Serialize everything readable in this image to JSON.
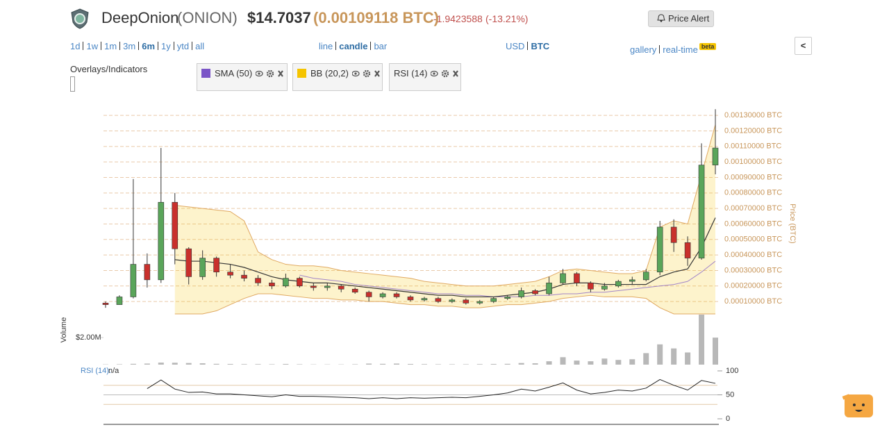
{
  "header": {
    "name": "DeepOnion",
    "symbol": "(ONION)",
    "price_usd": "$14.7037",
    "price_btc": "(0.00109118 BTC)",
    "change": "-1.9423588",
    "change_pct": "(-13.21%)",
    "alert": "Price Alert"
  },
  "controls": {
    "ranges": {
      "items": [
        "1d",
        "1w",
        "1m",
        "3m",
        "6m",
        "1y",
        "ytd",
        "all"
      ],
      "active": 4
    },
    "chart_types": {
      "items": [
        "line",
        "candle",
        "bar"
      ],
      "active": 1
    },
    "currencies": {
      "items": [
        "USD",
        "BTC"
      ],
      "active": 1
    },
    "views": {
      "items": [
        "gallery",
        "real-time"
      ],
      "badge": "beta"
    },
    "collapse": "<",
    "overlays_label": "Overlays/Indicators"
  },
  "chart_data": {
    "type": "candlestick",
    "categories": [
      null,
      null,
      null,
      null,
      null,
      null,
      null,
      null,
      null,
      null,
      null,
      null,
      null,
      null,
      null,
      null,
      null,
      null,
      null,
      null,
      null,
      null,
      null,
      null,
      null,
      null,
      null,
      null,
      null,
      null,
      null,
      null,
      null,
      null,
      null,
      null,
      null,
      null,
      null,
      null,
      null,
      null,
      null,
      null,
      null
    ],
    "open": [
      9e-05,
      8e-05,
      0.00013,
      0.00034,
      0.00024,
      0.00074,
      0.00044,
      0.00026,
      0.00038,
      0.00029,
      0.00027,
      0.00025,
      0.00022,
      0.0002,
      0.00025,
      0.0002,
      0.00019,
      0.0002,
      0.00018,
      0.00016,
      0.00013,
      0.00015,
      0.00013,
      0.00011,
      0.00012,
      0.0001,
      0.00011,
      9e-05,
      0.0001,
      0.00012,
      0.00013,
      0.00017,
      0.00015,
      0.00022,
      0.00028,
      0.00022,
      0.00018,
      0.0002,
      0.00023,
      0.00024,
      0.00029,
      0.00058,
      0.00048,
      0.00038,
      0.00098
    ],
    "high": [
      0.0001,
      0.00014,
      0.00089,
      0.00041,
      0.00109,
      0.0008,
      0.00045,
      0.00043,
      0.00039,
      0.00034,
      0.0003,
      0.00027,
      0.00024,
      0.00028,
      0.00026,
      0.00022,
      0.00022,
      0.00021,
      0.00019,
      0.00017,
      0.00016,
      0.00016,
      0.00014,
      0.00013,
      0.00013,
      0.00012,
      0.00012,
      0.00011,
      0.00013,
      0.00014,
      0.00019,
      0.00018,
      0.00026,
      0.00031,
      0.00029,
      0.00023,
      0.00022,
      0.00024,
      0.00026,
      0.00031,
      0.00062,
      0.00063,
      0.00052,
      0.00112,
      0.00134
    ],
    "low": [
      6e-05,
      8e-05,
      0.00012,
      0.00019,
      0.00022,
      0.00034,
      0.00021,
      0.00024,
      0.00026,
      0.00025,
      0.00023,
      0.0002,
      0.00018,
      0.00019,
      0.00019,
      0.00017,
      0.00017,
      0.00016,
      0.00015,
      0.0001,
      0.00012,
      0.00012,
      0.0001,
      0.0001,
      9e-05,
      9e-05,
      8e-05,
      8e-05,
      9e-05,
      0.00011,
      0.00012,
      0.00014,
      0.00014,
      0.00021,
      0.0002,
      0.00016,
      0.00017,
      0.00019,
      0.00021,
      0.00023,
      0.00027,
      0.00042,
      0.00033,
      0.00037,
      0.00092
    ],
    "close": [
      8e-05,
      0.00013,
      0.00034,
      0.00024,
      0.00074,
      0.00044,
      0.00026,
      0.00038,
      0.00029,
      0.00027,
      0.00025,
      0.00022,
      0.0002,
      0.00025,
      0.0002,
      0.00019,
      0.0002,
      0.00018,
      0.00016,
      0.00013,
      0.00015,
      0.00013,
      0.00011,
      0.00012,
      0.0001,
      0.00011,
      9e-05,
      0.0001,
      0.00012,
      0.00013,
      0.00017,
      0.00015,
      0.00022,
      0.00028,
      0.00022,
      0.00018,
      0.0002,
      0.00023,
      0.00024,
      0.00029,
      0.00058,
      0.00048,
      0.00038,
      0.00098,
      0.00109
    ],
    "up_color": "#5aa55a",
    "down_color": "#c9302c",
    "ylim": [
      2e-05,
      0.00135
    ],
    "yticks": [
      {
        "value": 0.0001,
        "label": "0.00010000 BTC"
      },
      {
        "value": 0.0002,
        "label": "0.00020000 BTC"
      },
      {
        "value": 0.0003,
        "label": "0.00030000 BTC"
      },
      {
        "value": 0.0004,
        "label": "0.00040000 BTC"
      },
      {
        "value": 0.0005,
        "label": "0.00050000 BTC"
      },
      {
        "value": 0.0006,
        "label": "0.00060000 BTC"
      },
      {
        "value": 0.0007,
        "label": "0.00070000 BTC"
      },
      {
        "value": 0.0008,
        "label": "0.00080000 BTC"
      },
      {
        "value": 0.0009,
        "label": "0.00090000 BTC"
      },
      {
        "value": 0.001,
        "label": "0.00100000 BTC"
      },
      {
        "value": 0.0011,
        "label": "0.00110000 BTC"
      },
      {
        "value": 0.0012,
        "label": "0.00120000 BTC"
      },
      {
        "value": 0.0013,
        "label": "0.00130000 BTC"
      }
    ],
    "y_label": "Price (BTC)",
    "grid": true,
    "sma": {
      "name": "SMA (50)",
      "color": "#7b55c7",
      "values": [
        null,
        null,
        null,
        null,
        null,
        null,
        null,
        null,
        null,
        null,
        null,
        null,
        null,
        null,
        0.00027,
        0.00025,
        0.00024,
        0.00023,
        0.00021,
        0.0002,
        0.00019,
        0.00018,
        0.00017,
        0.00016,
        0.00015,
        0.00015,
        0.00014,
        0.00014,
        0.00013,
        0.00013,
        0.00013,
        0.00014,
        0.00014,
        0.00015,
        0.00015,
        0.00016,
        0.00016,
        0.00017,
        0.00018,
        0.00019,
        0.0002,
        0.00021,
        0.00023,
        0.00029,
        0.00036
      ]
    },
    "bb": {
      "name": "BB (20,2)",
      "color": "#f5c400",
      "upper": [
        null,
        null,
        null,
        null,
        null,
        0.00072,
        0.00071,
        0.0007,
        0.00069,
        0.00068,
        0.00062,
        0.00042,
        0.00037,
        0.00034,
        0.00033,
        0.00033,
        0.00032,
        0.0003,
        0.00029,
        0.00028,
        0.00027,
        0.00026,
        0.00025,
        0.00023,
        0.00022,
        0.00021,
        0.0002,
        0.0002,
        0.0002,
        0.00021,
        0.00022,
        0.00023,
        0.00026,
        0.0003,
        0.00031,
        0.0003,
        0.00029,
        0.00028,
        0.00028,
        0.0003,
        0.00058,
        0.00062,
        0.0006,
        0.00092,
        0.00124
      ],
      "middle": [
        null,
        null,
        null,
        null,
        null,
        0.00037,
        0.00036,
        0.00036,
        0.00035,
        0.00034,
        0.00032,
        0.00029,
        0.00026,
        0.00024,
        0.00023,
        0.00022,
        0.00022,
        0.00021,
        0.0002,
        0.00019,
        0.00018,
        0.00017,
        0.00016,
        0.00015,
        0.00014,
        0.00014,
        0.00013,
        0.00013,
        0.00013,
        0.00014,
        0.00015,
        0.00016,
        0.00018,
        0.00021,
        0.00022,
        0.00022,
        0.00021,
        0.00021,
        0.00021,
        0.00021,
        0.00026,
        0.00029,
        0.00031,
        0.00045,
        0.00064
      ],
      "lower": [
        null,
        null,
        null,
        null,
        null,
        2e-05,
        2e-05,
        2e-05,
        4e-05,
        8e-05,
        0.00012,
        0.00015,
        0.00015,
        0.00014,
        0.00013,
        0.00012,
        0.00012,
        0.00011,
        0.00011,
        0.0001,
        0.0001,
        9e-05,
        8e-05,
        8e-05,
        7e-05,
        7e-05,
        6e-05,
        6e-05,
        7e-05,
        8e-05,
        8e-05,
        9e-05,
        0.0001,
        0.00012,
        0.00013,
        0.00014,
        0.00013,
        0.00013,
        0.00013,
        0.00012,
        6e-05,
        2e-05,
        2e-05,
        2e-05,
        2e-05
      ]
    },
    "volume": {
      "label": "Volume",
      "color": "#b8b8b8",
      "values": [
        20000,
        30000,
        60000,
        80000,
        150000,
        140000,
        120000,
        100000,
        60000,
        50000,
        40000,
        40000,
        30000,
        50000,
        30000,
        20000,
        20000,
        20000,
        30000,
        80000,
        60000,
        80000,
        50000,
        40000,
        30000,
        30000,
        30000,
        40000,
        50000,
        60000,
        120000,
        100000,
        250000,
        550000,
        300000,
        250000,
        450000,
        350000,
        400000,
        850000,
        1500000,
        1200000,
        900000,
        3700000,
        2000000
      ],
      "ylim": [
        0,
        3700000
      ],
      "yticks": [
        {
          "value": 2000000,
          "label": "$2.00M"
        }
      ]
    },
    "rsi": {
      "name": "RSI (14)",
      "label": "RSI (14):",
      "value_text": "n/a",
      "color": "#222",
      "values": [
        null,
        null,
        null,
        63,
        81,
        62,
        55,
        56,
        52,
        52,
        50,
        48,
        46,
        50,
        47,
        47,
        46,
        45,
        44,
        42,
        44,
        42,
        44,
        43,
        44,
        45,
        44,
        47,
        50,
        54,
        62,
        58,
        66,
        75,
        60,
        52,
        55,
        60,
        58,
        64,
        82,
        70,
        60,
        80,
        74
      ],
      "ylim": [
        0,
        100
      ],
      "yticks": [
        0,
        50,
        100
      ],
      "bands": [
        30,
        70
      ]
    }
  }
}
